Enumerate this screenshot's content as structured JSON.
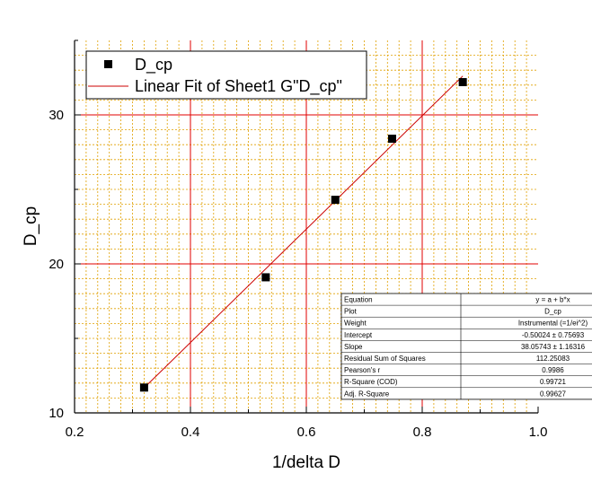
{
  "chart_data": {
    "type": "scatter",
    "xlabel": "1/delta D",
    "ylabel": "D_cp",
    "xlim": [
      0.2,
      1.0
    ],
    "ylim": [
      10,
      35
    ],
    "x_ticks": [
      "0.2",
      "0.4",
      "0.6",
      "0.8",
      "1.0"
    ],
    "y_ticks": [
      "10",
      "20",
      "30"
    ],
    "grid": true,
    "legend_position": "top-left",
    "colors": {
      "major_grid": "#e00000",
      "minor_grid": "#e0a000",
      "fit_line": "#cc0000",
      "marker": "#000000"
    },
    "series": [
      {
        "name": "D_cp",
        "x": [
          0.32,
          0.53,
          0.65,
          0.748,
          0.87
        ],
        "y": [
          11.7,
          19.1,
          24.3,
          28.4,
          32.2
        ]
      }
    ],
    "fit": {
      "name": "Linear Fit of Sheet1 G\"D_cp\"",
      "intercept": -0.50024,
      "slope": 38.05743,
      "x_range": [
        0.32,
        0.87
      ]
    },
    "stats_table": [
      [
        "Equation",
        "y = a + b*x"
      ],
      [
        "Plot",
        "D_cp"
      ],
      [
        "Weight",
        "Instrumental (=1/ei^2)"
      ],
      [
        "Intercept",
        "-0.50024 ± 0.75693"
      ],
      [
        "Slope",
        "38.05743 ± 1.16316"
      ],
      [
        "Residual Sum of Squares",
        "112.25083"
      ],
      [
        "Pearson's r",
        "0.9986"
      ],
      [
        "R-Square (COD)",
        "0.99721"
      ],
      [
        "Adj. R-Square",
        "0.99627"
      ]
    ]
  }
}
